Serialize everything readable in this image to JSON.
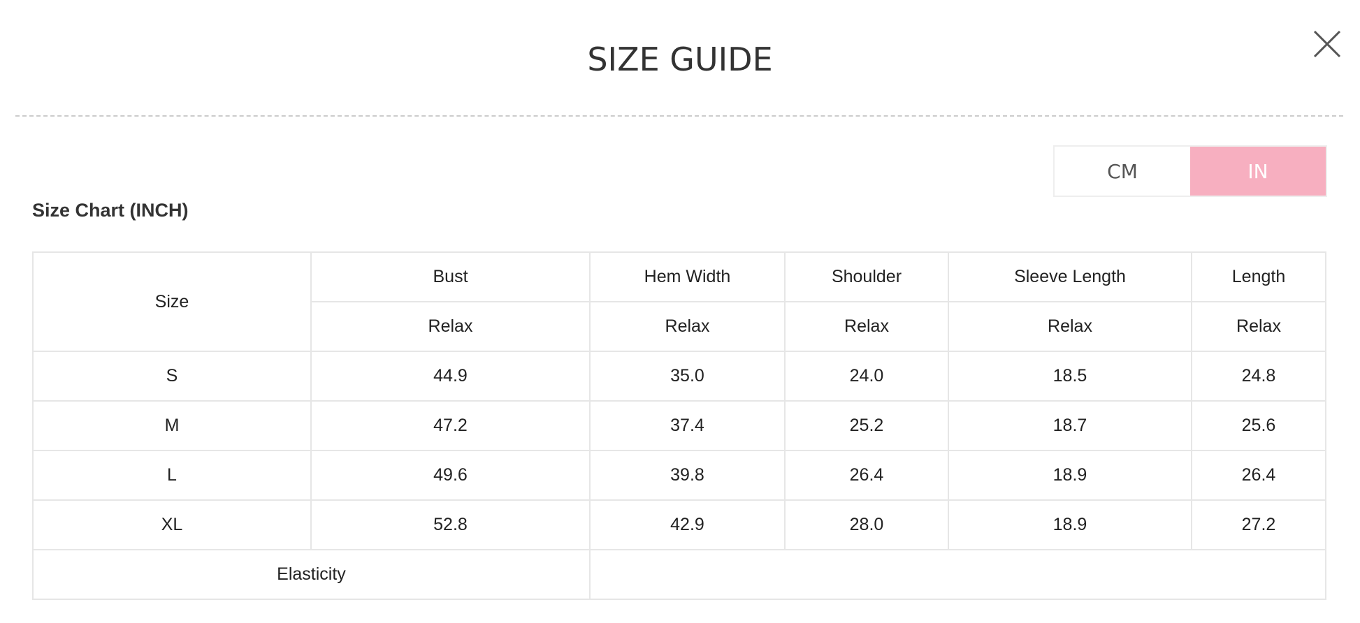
{
  "header": {
    "title": "SIZE GUIDE",
    "close_icon": "close-icon"
  },
  "unit_toggle": {
    "options": [
      "CM",
      "IN"
    ],
    "selected": "IN",
    "accent": "#f7afc0"
  },
  "chart": {
    "title": "Size Chart (INCH)",
    "size_header": "Size",
    "columns": [
      "Bust",
      "Hem Width",
      "Shoulder",
      "Sleeve Length",
      "Length"
    ],
    "sub_label": "Relax",
    "rows": [
      {
        "size": "S",
        "values": [
          "44.9",
          "35.0",
          "24.0",
          "18.5",
          "24.8"
        ]
      },
      {
        "size": "M",
        "values": [
          "47.2",
          "37.4",
          "25.2",
          "18.7",
          "25.6"
        ]
      },
      {
        "size": "L",
        "values": [
          "49.6",
          "39.8",
          "26.4",
          "18.9",
          "26.4"
        ]
      },
      {
        "size": "XL",
        "values": [
          "52.8",
          "42.9",
          "28.0",
          "18.9",
          "27.2"
        ]
      }
    ],
    "elasticity_label": "Elasticity",
    "elasticity_value": ""
  }
}
